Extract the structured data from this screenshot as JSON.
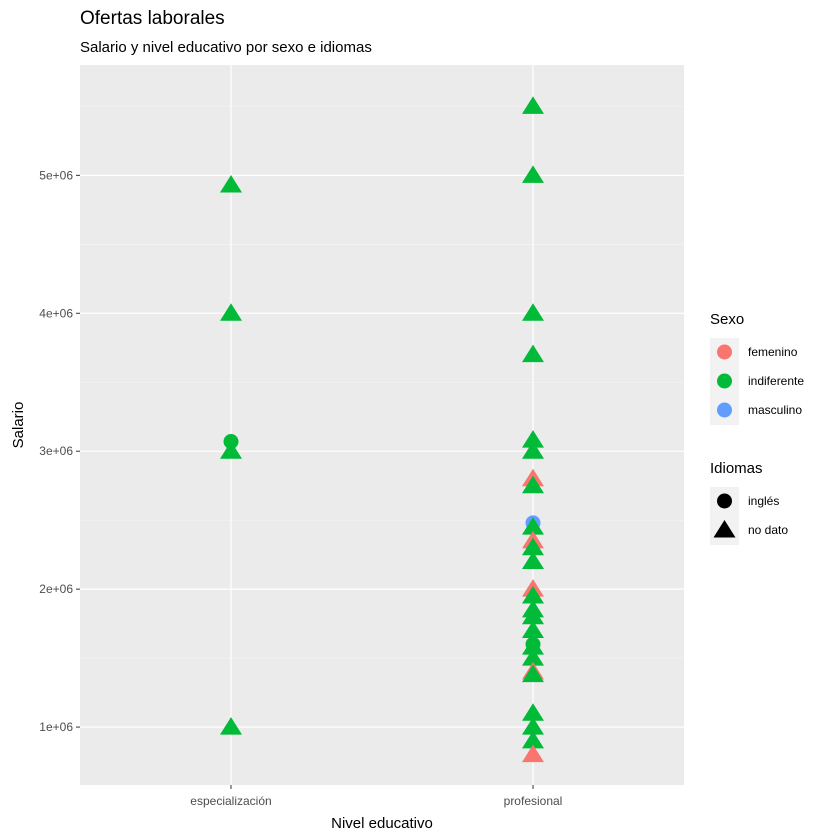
{
  "chart_data": {
    "type": "scatter",
    "title": "Ofertas laborales",
    "subtitle": "Salario y nivel educativo por sexo e idiomas",
    "xlabel": "Nivel educativo",
    "ylabel": "Salario",
    "categories": [
      "especialización",
      "profesional"
    ],
    "ylim": [
      580000,
      5800000
    ],
    "yticks": [
      1000000,
      2000000,
      3000000,
      4000000,
      5000000
    ],
    "ytick_labels": [
      "1e+06",
      "2e+06",
      "3e+06",
      "4e+06",
      "5e+06"
    ],
    "grid": true,
    "legend_placement": "right",
    "legends": {
      "sexo": {
        "title": "Sexo",
        "entries": [
          {
            "label": "femenino",
            "color": "#F8766D"
          },
          {
            "label": "indiferente",
            "color": "#00BA38"
          },
          {
            "label": "masculino",
            "color": "#619CFF"
          }
        ]
      },
      "idiomas": {
        "title": "Idiomas",
        "entries": [
          {
            "label": "inglés",
            "shape": "circle"
          },
          {
            "label": "no dato",
            "shape": "triangle"
          }
        ]
      }
    },
    "points": [
      {
        "x": "especialización",
        "y": 4930000,
        "sexo": "indiferente",
        "idiomas": "no dato"
      },
      {
        "x": "especialización",
        "y": 4000000,
        "sexo": "indiferente",
        "idiomas": "no dato"
      },
      {
        "x": "especialización",
        "y": 3070000,
        "sexo": "indiferente",
        "idiomas": "inglés"
      },
      {
        "x": "especialización",
        "y": 3000000,
        "sexo": "indiferente",
        "idiomas": "no dato"
      },
      {
        "x": "especialización",
        "y": 1000000,
        "sexo": "indiferente",
        "idiomas": "no dato"
      },
      {
        "x": "profesional",
        "y": 5500000,
        "sexo": "indiferente",
        "idiomas": "no dato"
      },
      {
        "x": "profesional",
        "y": 5000000,
        "sexo": "indiferente",
        "idiomas": "no dato"
      },
      {
        "x": "profesional",
        "y": 4000000,
        "sexo": "indiferente",
        "idiomas": "no dato"
      },
      {
        "x": "profesional",
        "y": 3700000,
        "sexo": "indiferente",
        "idiomas": "no dato"
      },
      {
        "x": "profesional",
        "y": 3080000,
        "sexo": "indiferente",
        "idiomas": "no dato"
      },
      {
        "x": "profesional",
        "y": 3000000,
        "sexo": "indiferente",
        "idiomas": "no dato"
      },
      {
        "x": "profesional",
        "y": 2800000,
        "sexo": "femenino",
        "idiomas": "no dato"
      },
      {
        "x": "profesional",
        "y": 2750000,
        "sexo": "indiferente",
        "idiomas": "no dato"
      },
      {
        "x": "profesional",
        "y": 2480000,
        "sexo": "masculino",
        "idiomas": "inglés"
      },
      {
        "x": "profesional",
        "y": 2450000,
        "sexo": "indiferente",
        "idiomas": "no dato"
      },
      {
        "x": "profesional",
        "y": 2350000,
        "sexo": "femenino",
        "idiomas": "no dato"
      },
      {
        "x": "profesional",
        "y": 2300000,
        "sexo": "indiferente",
        "idiomas": "no dato"
      },
      {
        "x": "profesional",
        "y": 2200000,
        "sexo": "indiferente",
        "idiomas": "no dato"
      },
      {
        "x": "profesional",
        "y": 2000000,
        "sexo": "femenino",
        "idiomas": "no dato"
      },
      {
        "x": "profesional",
        "y": 1950000,
        "sexo": "indiferente",
        "idiomas": "no dato"
      },
      {
        "x": "profesional",
        "y": 1850000,
        "sexo": "indiferente",
        "idiomas": "no dato"
      },
      {
        "x": "profesional",
        "y": 1800000,
        "sexo": "indiferente",
        "idiomas": "no dato"
      },
      {
        "x": "profesional",
        "y": 1700000,
        "sexo": "indiferente",
        "idiomas": "no dato"
      },
      {
        "x": "profesional",
        "y": 1600000,
        "sexo": "indiferente",
        "idiomas": "inglés"
      },
      {
        "x": "profesional",
        "y": 1580000,
        "sexo": "indiferente",
        "idiomas": "no dato"
      },
      {
        "x": "profesional",
        "y": 1500000,
        "sexo": "indiferente",
        "idiomas": "no dato"
      },
      {
        "x": "profesional",
        "y": 1400000,
        "sexo": "femenino",
        "idiomas": "no dato"
      },
      {
        "x": "profesional",
        "y": 1380000,
        "sexo": "indiferente",
        "idiomas": "no dato"
      },
      {
        "x": "profesional",
        "y": 1100000,
        "sexo": "indiferente",
        "idiomas": "no dato"
      },
      {
        "x": "profesional",
        "y": 1000000,
        "sexo": "indiferente",
        "idiomas": "no dato"
      },
      {
        "x": "profesional",
        "y": 900000,
        "sexo": "indiferente",
        "idiomas": "no dato"
      },
      {
        "x": "profesional",
        "y": 800000,
        "sexo": "femenino",
        "idiomas": "no dato"
      }
    ]
  }
}
